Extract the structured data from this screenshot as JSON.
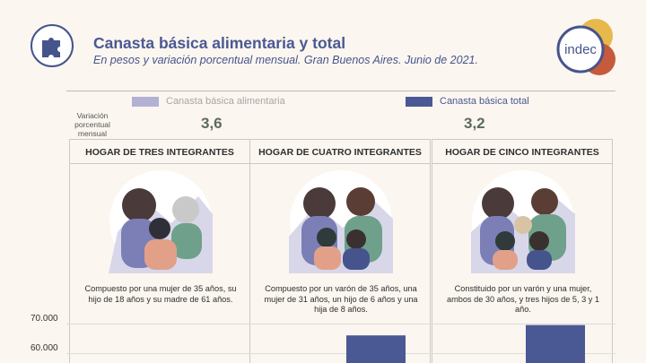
{
  "header": {
    "title": "Canasta básica alimentaria y total",
    "subtitle": "En pesos y variación porcentual mensual. Gran Buenos Aires. Junio de 2021."
  },
  "logo": {
    "text": "indec"
  },
  "legend": {
    "food": "Canasta básica alimentaria",
    "total": "Canasta básica total"
  },
  "variation": {
    "label": "Variación porcentual mensual",
    "food_value": "3,6",
    "total_value": "3,2"
  },
  "panels": [
    {
      "title": "HOGAR DE TRES INTEGRANTES",
      "text": "Compuesto por una mujer de 35 años, su hijo de 18 años y su madre de 61 años."
    },
    {
      "title": "HOGAR DE CUATRO INTEGRANTES",
      "text": "Compuesto por un varón de 35 años, una mujer de 31 años, un hijo de 6 años y una hija de 8 años."
    },
    {
      "title": "HOGAR DE CINCO INTEGRANTES",
      "text": "Constituido por un varón y una mujer, ambos de 30 años, y tres hijos de 5, 3 y 1 año."
    }
  ],
  "colors": {
    "food": "#b2b1d4",
    "total": "#4a5893",
    "accent_title": "#4a5893"
  },
  "chart_data": {
    "type": "bar",
    "categories": [
      "HOGAR DE TRES INTEGRANTES",
      "HOGAR DE CUATRO INTEGRANTES",
      "HOGAR DE CINCO INTEGRANTES"
    ],
    "yticks": [
      "70.000",
      "60.000"
    ],
    "ytick_values": [
      70000,
      60000
    ],
    "series": [
      {
        "name": "Canasta básica total",
        "values": [
          null,
          66000,
          69500
        ]
      }
    ],
    "ylim": [
      55000,
      75000
    ],
    "grid": true
  }
}
